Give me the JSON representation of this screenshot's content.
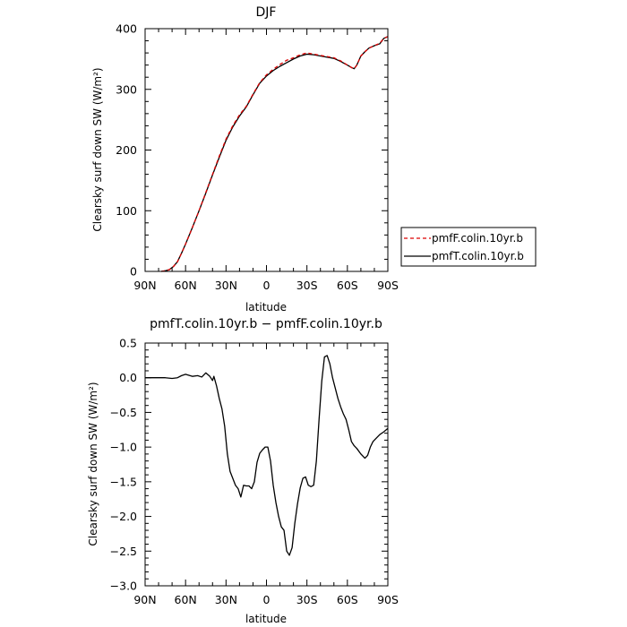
{
  "chart_data": [
    {
      "type": "line",
      "title": "DJF",
      "xlabel": "latitude",
      "ylabel": "Clearsky surf down SW (W/m²)",
      "xlim": [
        90,
        -90
      ],
      "ylim": [
        0,
        400
      ],
      "x_ticks": [
        90,
        60,
        30,
        0,
        -30,
        -60,
        -90
      ],
      "x_tick_labels": [
        "90N",
        "60N",
        "30N",
        "0",
        "30S",
        "60S",
        "90S"
      ],
      "y_ticks": [
        0,
        100,
        200,
        300,
        400
      ],
      "y_tick_labels": [
        "0",
        "100",
        "200",
        "300",
        "400"
      ],
      "legend_position": "right",
      "series": [
        {
          "name": "pmfF.colin.10yr.b",
          "color": "#dd0000",
          "style": "dashed",
          "x": [
            78,
            75,
            72,
            69,
            66,
            63,
            60,
            55,
            50,
            45,
            40,
            35,
            30,
            25,
            20,
            15,
            10,
            5,
            0,
            -5,
            -10,
            -15,
            -20,
            -25,
            -30,
            -35,
            -40,
            -45,
            -50,
            -55,
            -60,
            -63,
            -65,
            -67,
            -70,
            -73,
            -76,
            -80,
            -84,
            -87,
            -90
          ],
          "y": [
            0,
            1,
            3,
            8,
            16,
            30,
            45,
            72,
            100,
            130,
            160,
            190,
            218,
            240,
            258,
            272,
            292,
            311,
            324,
            333,
            341,
            348,
            352,
            357,
            360,
            358,
            356,
            354,
            352,
            347,
            340,
            336,
            334,
            340,
            355,
            362,
            368,
            372,
            376,
            384,
            387
          ]
        },
        {
          "name": "pmfT.colin.10yr.b",
          "color": "#000000",
          "style": "solid",
          "x": [
            78,
            75,
            72,
            69,
            66,
            63,
            60,
            55,
            50,
            45,
            40,
            35,
            30,
            25,
            20,
            15,
            10,
            5,
            0,
            -5,
            -10,
            -15,
            -20,
            -25,
            -30,
            -35,
            -40,
            -45,
            -50,
            -55,
            -60,
            -63,
            -65,
            -67,
            -70,
            -73,
            -76,
            -80,
            -84,
            -87,
            -90
          ],
          "y": [
            0,
            1,
            3,
            8,
            16,
            30,
            45,
            72,
            100,
            129,
            159,
            188,
            216,
            238,
            256,
            271,
            291,
            310,
            322,
            331,
            338,
            344,
            350,
            355,
            358,
            357,
            355,
            353,
            351,
            346,
            340,
            336,
            334,
            340,
            355,
            362,
            368,
            372,
            375,
            384,
            387
          ]
        }
      ]
    },
    {
      "type": "line",
      "title": "pmfT.colin.10yr.b − pmfF.colin.10yr.b",
      "xlabel": "latitude",
      "ylabel": "Clearsky surf down SW (W/m²)",
      "xlim": [
        90,
        -90
      ],
      "ylim": [
        -3.0,
        0.5
      ],
      "x_ticks": [
        90,
        60,
        30,
        0,
        -30,
        -60,
        -90
      ],
      "x_tick_labels": [
        "90N",
        "60N",
        "30N",
        "0",
        "30S",
        "60S",
        "90S"
      ],
      "y_ticks": [
        0.5,
        0.0,
        -0.5,
        -1.0,
        -1.5,
        -2.0,
        -2.5,
        -3.0
      ],
      "y_tick_labels": [
        "0.5",
        "0.0",
        "−0.5",
        "−1.0",
        "−1.5",
        "−2.0",
        "−2.5",
        "−3.0"
      ],
      "series": [
        {
          "color": "#000000",
          "style": "solid",
          "x": [
            90,
            80,
            75,
            70,
            66,
            63,
            60,
            55,
            51,
            48,
            45,
            42,
            40,
            39,
            38,
            37,
            35,
            33,
            31,
            29,
            27,
            25,
            23,
            21,
            19,
            17,
            15,
            13,
            11,
            9,
            7,
            5,
            3,
            1,
            -1,
            -3,
            -5,
            -7,
            -9,
            -11,
            -13,
            -15,
            -17,
            -19,
            -21,
            -23,
            -25,
            -27,
            -29,
            -31,
            -33,
            -35,
            -37,
            -39,
            -41,
            -43,
            -45,
            -47,
            -49,
            -51,
            -53,
            -55,
            -57,
            -59,
            -61,
            -63,
            -65,
            -67,
            -70,
            -73,
            -75,
            -77,
            -79,
            -81,
            -84,
            -87,
            -90
          ],
          "y": [
            0.0,
            0.0,
            0.0,
            -0.01,
            0.0,
            0.03,
            0.05,
            0.02,
            0.03,
            0.01,
            0.07,
            0.02,
            -0.04,
            0.02,
            -0.05,
            -0.12,
            -0.3,
            -0.45,
            -0.7,
            -1.1,
            -1.35,
            -1.45,
            -1.55,
            -1.6,
            -1.72,
            -1.55,
            -1.56,
            -1.56,
            -1.6,
            -1.5,
            -1.22,
            -1.09,
            -1.04,
            -1.0,
            -1.0,
            -1.2,
            -1.55,
            -1.8,
            -2.0,
            -2.15,
            -2.2,
            -2.5,
            -2.56,
            -2.45,
            -2.1,
            -1.82,
            -1.59,
            -1.45,
            -1.43,
            -1.55,
            -1.57,
            -1.55,
            -1.2,
            -0.6,
            -0.05,
            0.3,
            0.32,
            0.2,
            0.0,
            -0.15,
            -0.3,
            -0.42,
            -0.52,
            -0.6,
            -0.75,
            -0.92,
            -0.98,
            -1.02,
            -1.1,
            -1.16,
            -1.12,
            -1.0,
            -0.92,
            -0.88,
            -0.82,
            -0.78,
            -0.73
          ]
        }
      ]
    }
  ]
}
